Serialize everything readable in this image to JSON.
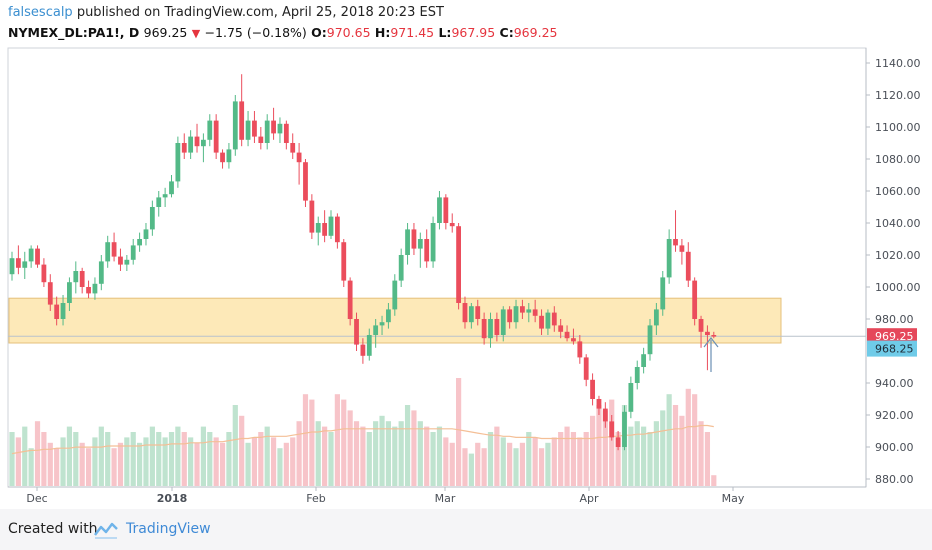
{
  "header": {
    "author": "falsescalp",
    "published_text": " published on TradingView.com, April 25, 2018 20:23 EST",
    "symbol": "NYMEX_DL:PA1!, D",
    "last": "969.25",
    "arrow": "▼",
    "change": "−1.75 (−0.18%)",
    "o_label": "O:",
    "o": "970.65",
    "h_label": "H:",
    "h": "971.45",
    "l_label": "L:",
    "l": "967.95",
    "c_label": "C:",
    "c": "969.25"
  },
  "footer": {
    "created_with": "Created with",
    "brand": "TradingView"
  },
  "colors": {
    "up": "#53b987",
    "down": "#eb4d5c",
    "zone_fill": "#fde9b8",
    "zone_stroke": "#e5c07b",
    "price_tag": "#e5475a",
    "alt_tag": "#6fcbe8",
    "ma": "#f4bf96"
  },
  "chart_data": {
    "type": "candlestick",
    "ylim": [
      875,
      1145
    ],
    "y_ticks": [
      "1140.00",
      "1120.00",
      "1100.00",
      "1080.00",
      "1060.00",
      "1040.00",
      "1020.00",
      "1000.00",
      "980.00",
      "940.00",
      "920.00",
      "900.00",
      "880.00"
    ],
    "x_tick_labels": [
      "Dec",
      "2018",
      "Feb",
      "Mar",
      "Apr",
      "May"
    ],
    "price_label": "969.25",
    "secondary_label": "968.25",
    "zone": [
      965,
      993
    ],
    "candles": [
      [
        1008,
        1022,
        1004,
        1018
      ],
      [
        1018,
        1026,
        1008,
        1012
      ],
      [
        1012,
        1022,
        1005,
        1016
      ],
      [
        1016,
        1026,
        1012,
        1024
      ],
      [
        1024,
        1026,
        1012,
        1014
      ],
      [
        1014,
        1018,
        1000,
        1003
      ],
      [
        1003,
        1008,
        985,
        989
      ],
      [
        989,
        994,
        976,
        980
      ],
      [
        980,
        995,
        976,
        990
      ],
      [
        990,
        1006,
        985,
        1003
      ],
      [
        1003,
        1016,
        996,
        1010
      ],
      [
        1010,
        1012,
        996,
        1000
      ],
      [
        1000,
        1004,
        993,
        996
      ],
      [
        996,
        1006,
        992,
        1002
      ],
      [
        1002,
        1020,
        998,
        1016
      ],
      [
        1016,
        1032,
        1012,
        1028
      ],
      [
        1028,
        1034,
        1016,
        1019
      ],
      [
        1019,
        1024,
        1010,
        1014
      ],
      [
        1014,
        1020,
        1010,
        1017
      ],
      [
        1017,
        1030,
        1014,
        1026
      ],
      [
        1026,
        1034,
        1022,
        1030
      ],
      [
        1030,
        1040,
        1026,
        1036
      ],
      [
        1036,
        1054,
        1032,
        1050
      ],
      [
        1050,
        1060,
        1044,
        1056
      ],
      [
        1056,
        1062,
        1050,
        1058
      ],
      [
        1058,
        1070,
        1056,
        1066
      ],
      [
        1066,
        1094,
        1062,
        1090
      ],
      [
        1090,
        1096,
        1080,
        1084
      ],
      [
        1084,
        1098,
        1080,
        1094
      ],
      [
        1094,
        1102,
        1084,
        1088
      ],
      [
        1088,
        1096,
        1078,
        1092
      ],
      [
        1092,
        1108,
        1088,
        1104
      ],
      [
        1104,
        1108,
        1080,
        1084
      ],
      [
        1084,
        1086,
        1074,
        1078
      ],
      [
        1078,
        1090,
        1074,
        1086
      ],
      [
        1086,
        1120,
        1082,
        1116
      ],
      [
        1116,
        1133,
        1088,
        1092
      ],
      [
        1092,
        1110,
        1088,
        1104
      ],
      [
        1104,
        1110,
        1090,
        1094
      ],
      [
        1094,
        1100,
        1086,
        1090
      ],
      [
        1090,
        1108,
        1086,
        1104
      ],
      [
        1104,
        1112,
        1092,
        1096
      ],
      [
        1096,
        1106,
        1090,
        1102
      ],
      [
        1102,
        1104,
        1086,
        1090
      ],
      [
        1090,
        1096,
        1080,
        1084
      ],
      [
        1084,
        1090,
        1064,
        1078
      ],
      [
        1078,
        1080,
        1050,
        1054
      ],
      [
        1054,
        1058,
        1030,
        1034
      ],
      [
        1034,
        1044,
        1026,
        1040
      ],
      [
        1040,
        1048,
        1028,
        1032
      ],
      [
        1032,
        1048,
        1030,
        1044
      ],
      [
        1044,
        1046,
        1024,
        1028
      ],
      [
        1028,
        1030,
        1000,
        1004
      ],
      [
        1004,
        1006,
        976,
        980
      ],
      [
        980,
        984,
        960,
        964
      ],
      [
        964,
        968,
        952,
        957
      ],
      [
        957,
        974,
        954,
        970
      ],
      [
        970,
        980,
        962,
        976
      ],
      [
        976,
        982,
        970,
        978
      ],
      [
        978,
        990,
        974,
        986
      ],
      [
        986,
        1008,
        982,
        1004
      ],
      [
        1004,
        1024,
        1000,
        1020
      ],
      [
        1020,
        1040,
        1014,
        1036
      ],
      [
        1036,
        1040,
        1020,
        1024
      ],
      [
        1024,
        1034,
        1012,
        1030
      ],
      [
        1030,
        1036,
        1012,
        1016
      ],
      [
        1016,
        1044,
        1012,
        1040
      ],
      [
        1040,
        1060,
        1036,
        1056
      ],
      [
        1056,
        1058,
        1036,
        1040
      ],
      [
        1040,
        1046,
        1034,
        1038
      ],
      [
        1038,
        1040,
        986,
        990
      ],
      [
        990,
        994,
        974,
        978
      ],
      [
        978,
        990,
        974,
        988
      ],
      [
        988,
        992,
        976,
        980
      ],
      [
        980,
        984,
        964,
        968
      ],
      [
        968,
        984,
        962,
        980
      ],
      [
        980,
        984,
        966,
        970
      ],
      [
        970,
        988,
        966,
        986
      ],
      [
        986,
        988,
        974,
        978
      ],
      [
        978,
        992,
        974,
        988
      ],
      [
        988,
        992,
        980,
        984
      ],
      [
        984,
        990,
        978,
        986
      ],
      [
        986,
        992,
        978,
        982
      ],
      [
        982,
        986,
        970,
        974
      ],
      [
        974,
        986,
        970,
        984
      ],
      [
        984,
        988,
        972,
        976
      ],
      [
        976,
        980,
        968,
        972
      ],
      [
        972,
        976,
        966,
        968
      ],
      [
        968,
        974,
        964,
        966
      ],
      [
        966,
        970,
        952,
        956
      ],
      [
        956,
        958,
        938,
        942
      ],
      [
        942,
        946,
        926,
        930
      ],
      [
        930,
        932,
        920,
        924
      ],
      [
        924,
        928,
        912,
        916
      ],
      [
        916,
        920,
        904,
        906
      ],
      [
        906,
        910,
        898,
        900
      ],
      [
        900,
        926,
        898,
        922
      ],
      [
        922,
        944,
        918,
        940
      ],
      [
        940,
        954,
        936,
        950
      ],
      [
        950,
        962,
        946,
        958
      ],
      [
        958,
        980,
        954,
        976
      ],
      [
        976,
        990,
        970,
        986
      ],
      [
        986,
        1010,
        982,
        1006
      ],
      [
        1006,
        1036,
        1002,
        1030
      ],
      [
        1030,
        1048,
        1022,
        1026
      ],
      [
        1026,
        1030,
        1014,
        1022
      ],
      [
        1022,
        1028,
        1000,
        1004
      ],
      [
        1004,
        1006,
        976,
        980
      ],
      [
        980,
        982,
        962,
        972
      ],
      [
        972,
        976,
        948,
        970
      ],
      [
        970,
        972,
        968,
        969
      ]
    ],
    "volume_rel": [
      0.5,
      0.45,
      0.55,
      0.35,
      0.6,
      0.5,
      0.4,
      0.35,
      0.45,
      0.55,
      0.5,
      0.4,
      0.35,
      0.45,
      0.55,
      0.5,
      0.35,
      0.4,
      0.45,
      0.5,
      0.4,
      0.45,
      0.55,
      0.5,
      0.45,
      0.5,
      0.55,
      0.5,
      0.45,
      0.4,
      0.55,
      0.5,
      0.45,
      0.4,
      0.5,
      0.75,
      0.65,
      0.4,
      0.45,
      0.5,
      0.55,
      0.45,
      0.35,
      0.4,
      0.45,
      0.6,
      0.85,
      0.8,
      0.6,
      0.55,
      0.5,
      0.85,
      0.8,
      0.7,
      0.6,
      0.55,
      0.5,
      0.6,
      0.65,
      0.6,
      0.55,
      0.6,
      0.75,
      0.7,
      0.6,
      0.55,
      0.5,
      0.55,
      0.45,
      0.4,
      1.0,
      0.35,
      0.3,
      0.4,
      0.35,
      0.5,
      0.55,
      0.45,
      0.4,
      0.35,
      0.4,
      0.5,
      0.45,
      0.35,
      0.4,
      0.45,
      0.5,
      0.55,
      0.5,
      0.45,
      0.5,
      0.65,
      0.75,
      0.7,
      0.8,
      0.5,
      0.75,
      0.55,
      0.6,
      0.55,
      0.5,
      0.6,
      0.7,
      0.85,
      0.75,
      0.65,
      0.9,
      0.85,
      0.6,
      0.5,
      0.1
    ],
    "ma_rel": [
      0.3,
      0.31,
      0.32,
      0.33,
      0.33,
      0.34,
      0.34,
      0.35,
      0.35,
      0.35,
      0.36,
      0.36,
      0.36,
      0.36,
      0.36,
      0.37,
      0.37,
      0.37,
      0.37,
      0.37,
      0.37,
      0.38,
      0.38,
      0.38,
      0.38,
      0.39,
      0.39,
      0.39,
      0.4,
      0.4,
      0.4,
      0.41,
      0.41,
      0.41,
      0.42,
      0.43,
      0.44,
      0.44,
      0.45,
      0.45,
      0.46,
      0.46,
      0.46,
      0.46,
      0.47,
      0.48,
      0.49,
      0.5,
      0.5,
      0.51,
      0.51,
      0.52,
      0.53,
      0.53,
      0.53,
      0.53,
      0.53,
      0.53,
      0.53,
      0.53,
      0.53,
      0.53,
      0.53,
      0.53,
      0.53,
      0.53,
      0.53,
      0.53,
      0.53,
      0.53,
      0.52,
      0.51,
      0.5,
      0.49,
      0.48,
      0.47,
      0.47,
      0.46,
      0.46,
      0.45,
      0.45,
      0.45,
      0.45,
      0.44,
      0.44,
      0.44,
      0.44,
      0.44,
      0.44,
      0.44,
      0.44,
      0.44,
      0.45,
      0.45,
      0.46,
      0.46,
      0.47,
      0.47,
      0.48,
      0.48,
      0.49,
      0.5,
      0.51,
      0.52,
      0.53,
      0.53,
      0.55,
      0.55,
      0.56,
      0.56,
      0.55
    ]
  }
}
